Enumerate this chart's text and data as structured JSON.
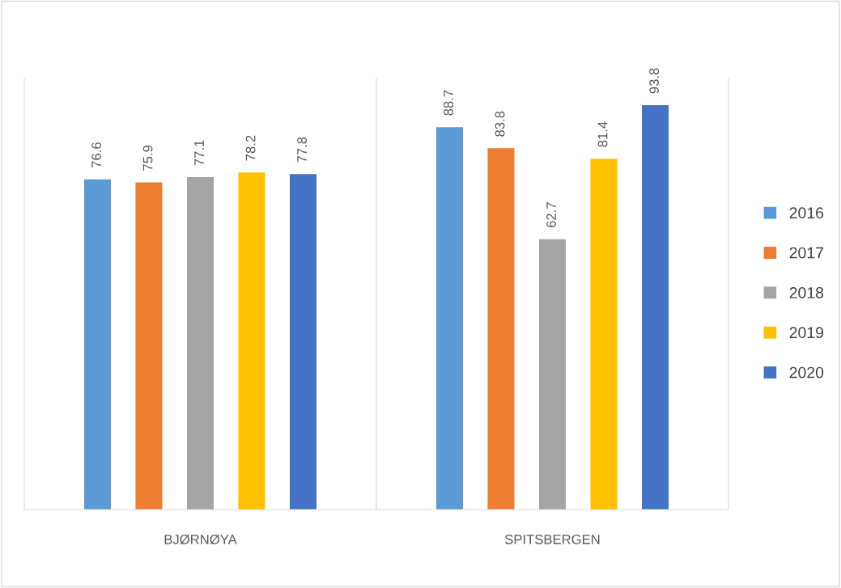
{
  "chart_data": {
    "type": "bar",
    "categories": [
      "BJØRNØYA",
      "SPITSBERGEN"
    ],
    "series": [
      {
        "name": "2016",
        "color": "#5b9bd5",
        "values": [
          76.6,
          88.7
        ]
      },
      {
        "name": "2017",
        "color": "#ed7d31",
        "values": [
          75.9,
          83.8
        ]
      },
      {
        "name": "2018",
        "color": "#a5a5a5",
        "values": [
          77.1,
          62.7
        ]
      },
      {
        "name": "2019",
        "color": "#ffc000",
        "values": [
          78.2,
          81.4
        ]
      },
      {
        "name": "2020",
        "color": "#4472c4",
        "values": [
          77.8,
          93.8
        ]
      }
    ],
    "ylim": [
      0,
      100
    ],
    "tick_labels": "x",
    "data_labels": true,
    "legend": "right",
    "grid": false
  }
}
